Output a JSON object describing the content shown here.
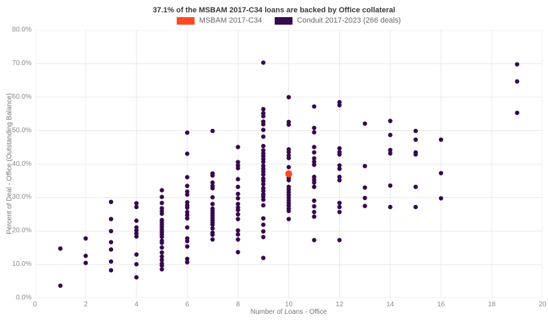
{
  "title": "37.1% of the MSBAM 2017-C34 loans are backed by Office collateral",
  "legend": [
    {
      "label": "MSBAM 2017-C34",
      "color": "#ff4a21"
    },
    {
      "label": "Conduit 2017-2023 (266 deals)",
      "color": "#36094f"
    }
  ],
  "chart_data": {
    "type": "scatter",
    "title": "37.1% of the MSBAM 2017-C34 loans are backed by Office collateral",
    "xlabel": "Number of Loans - Office",
    "ylabel": "Percent of Deal - Office (Outstanding Balance)",
    "xlim": [
      0,
      20
    ],
    "ylim": [
      0,
      80
    ],
    "grid": true,
    "legend_position": "top-center",
    "gridline_color": "#e8e8e8",
    "x_ticks": [
      {
        "value": 0,
        "label": "0"
      },
      {
        "value": 2,
        "label": "2"
      },
      {
        "value": 4,
        "label": "4"
      },
      {
        "value": 6,
        "label": "6"
      },
      {
        "value": 8,
        "label": "8"
      },
      {
        "value": 10,
        "label": "10"
      },
      {
        "value": 12,
        "label": "12"
      },
      {
        "value": 14,
        "label": "14"
      },
      {
        "value": 16,
        "label": "16"
      },
      {
        "value": 18,
        "label": "18"
      },
      {
        "value": 20,
        "label": "20"
      }
    ],
    "y_ticks": [
      {
        "value": 0,
        "label": "0.0%"
      },
      {
        "value": 10,
        "label": "10.0%"
      },
      {
        "value": 20,
        "label": "20.0%"
      },
      {
        "value": 30,
        "label": "30.0%"
      },
      {
        "value": 40,
        "label": "40.0%"
      },
      {
        "value": 50,
        "label": "50.0%"
      },
      {
        "value": 60,
        "label": "60.0%"
      },
      {
        "value": 70,
        "label": "70.0%"
      },
      {
        "value": 80,
        "label": "80.0%"
      }
    ],
    "series": [
      {
        "name": "MSBAM 2017-C34",
        "color": "#ff4a21",
        "marker_radius": 5.2,
        "points": [
          [
            10,
            37.1
          ]
        ]
      },
      {
        "name": "Conduit 2017-2023 (266 deals)",
        "color": "#36094f",
        "marker_radius": 3.2,
        "points": [
          [
            1,
            14.8
          ],
          [
            1,
            3.7
          ],
          [
            2,
            17.8
          ],
          [
            2,
            12.6
          ],
          [
            2,
            10.5
          ],
          [
            3,
            28.7
          ],
          [
            3,
            23.6
          ],
          [
            3,
            20.0
          ],
          [
            3,
            16.7
          ],
          [
            3,
            14.5
          ],
          [
            3,
            10.9
          ],
          [
            3,
            8.3
          ],
          [
            4,
            28.3
          ],
          [
            4,
            27.2
          ],
          [
            4,
            23.1
          ],
          [
            4,
            21.1
          ],
          [
            4,
            20.2
          ],
          [
            4,
            19.3
          ],
          [
            4,
            18.4
          ],
          [
            4,
            13.0
          ],
          [
            4,
            10.1
          ],
          [
            4,
            6.2
          ],
          [
            5,
            32.2
          ],
          [
            5,
            30.2
          ],
          [
            5,
            28.4
          ],
          [
            5,
            26.8
          ],
          [
            5,
            26.0
          ],
          [
            5,
            25.2
          ],
          [
            5,
            23.3
          ],
          [
            5,
            22.6
          ],
          [
            5,
            21.9
          ],
          [
            5,
            21.2
          ],
          [
            5,
            20.4
          ],
          [
            5,
            19.7
          ],
          [
            5,
            19.0
          ],
          [
            5,
            18.3
          ],
          [
            5,
            17.1
          ],
          [
            5,
            16.5
          ],
          [
            5,
            15.1
          ],
          [
            5,
            13.6
          ],
          [
            5,
            12.4
          ],
          [
            5,
            11.4
          ],
          [
            5,
            10.3
          ],
          [
            5,
            9.7
          ],
          [
            5,
            8.6
          ],
          [
            6,
            49.4
          ],
          [
            6,
            43.1
          ],
          [
            6,
            36.1
          ],
          [
            6,
            33.5
          ],
          [
            6,
            31.8
          ],
          [
            6,
            30.9
          ],
          [
            6,
            28.6
          ],
          [
            6,
            27.7
          ],
          [
            6,
            27.0
          ],
          [
            6,
            25.7
          ],
          [
            6,
            24.8
          ],
          [
            6,
            23.8
          ],
          [
            6,
            21.1
          ],
          [
            6,
            17.8
          ],
          [
            6,
            17.0
          ],
          [
            6,
            15.4
          ],
          [
            6,
            11.7
          ],
          [
            6,
            10.7
          ],
          [
            7,
            49.9
          ],
          [
            7,
            37.2
          ],
          [
            7,
            36.6
          ],
          [
            7,
            34.5
          ],
          [
            7,
            33.5
          ],
          [
            7,
            32.8
          ],
          [
            7,
            30.1
          ],
          [
            7,
            28.1
          ],
          [
            7,
            26.7
          ],
          [
            7,
            26.0
          ],
          [
            7,
            25.3
          ],
          [
            7,
            24.6
          ],
          [
            7,
            23.9
          ],
          [
            7,
            23.2
          ],
          [
            7,
            22.5
          ],
          [
            7,
            21.9
          ],
          [
            7,
            20.8
          ],
          [
            7,
            19.5
          ],
          [
            7,
            18.9
          ],
          [
            7,
            17.5
          ],
          [
            8,
            45.1
          ],
          [
            8,
            40.6
          ],
          [
            8,
            39.6
          ],
          [
            8,
            38.8
          ],
          [
            8,
            35.5
          ],
          [
            8,
            33.2
          ],
          [
            8,
            31.1
          ],
          [
            8,
            29.8
          ],
          [
            8,
            28.1
          ],
          [
            8,
            27.0
          ],
          [
            8,
            26.3
          ],
          [
            8,
            25.0
          ],
          [
            8,
            23.6
          ],
          [
            8,
            20.2
          ],
          [
            8,
            19.0
          ],
          [
            8,
            17.5
          ],
          [
            8,
            13.7
          ],
          [
            9,
            70.3
          ],
          [
            9,
            56.4
          ],
          [
            9,
            55.2
          ],
          [
            9,
            54.3
          ],
          [
            9,
            52.7
          ],
          [
            9,
            51.9
          ],
          [
            9,
            50.2
          ],
          [
            9,
            48.2
          ],
          [
            9,
            45.4
          ],
          [
            9,
            44.1
          ],
          [
            9,
            43.2
          ],
          [
            9,
            42.4
          ],
          [
            9,
            41.5
          ],
          [
            9,
            40.7
          ],
          [
            9,
            39.5
          ],
          [
            9,
            38.6
          ],
          [
            9,
            37.8
          ],
          [
            9,
            36.9
          ],
          [
            9,
            35.7
          ],
          [
            9,
            35.0
          ],
          [
            9,
            34.0
          ],
          [
            9,
            32.8
          ],
          [
            9,
            32.0
          ],
          [
            9,
            31.0
          ],
          [
            9,
            30.3
          ],
          [
            9,
            29.4
          ],
          [
            9,
            27.7
          ],
          [
            9,
            23.8
          ],
          [
            9,
            21.9
          ],
          [
            9,
            19.9
          ],
          [
            9,
            18.2
          ],
          [
            9,
            12.0
          ],
          [
            10,
            60.0
          ],
          [
            10,
            52.6
          ],
          [
            10,
            51.8
          ],
          [
            10,
            44.4
          ],
          [
            10,
            43.6
          ],
          [
            10,
            42.6
          ],
          [
            10,
            41.8
          ],
          [
            10,
            39.1
          ],
          [
            10,
            35.9
          ],
          [
            10,
            35.2
          ],
          [
            10,
            33.2
          ],
          [
            10,
            32.4
          ],
          [
            10,
            31.6
          ],
          [
            10,
            30.8
          ],
          [
            10,
            30.0
          ],
          [
            10,
            29.2
          ],
          [
            10,
            28.4
          ],
          [
            10,
            27.6
          ],
          [
            10,
            26.7
          ],
          [
            10,
            26.0
          ],
          [
            10,
            23.6
          ],
          [
            11,
            57.2
          ],
          [
            11,
            50.8
          ],
          [
            11,
            49.5
          ],
          [
            11,
            45.1
          ],
          [
            11,
            43.5
          ],
          [
            11,
            41.7
          ],
          [
            11,
            40.7
          ],
          [
            11,
            39.8
          ],
          [
            11,
            36.2
          ],
          [
            11,
            35.3
          ],
          [
            11,
            34.5
          ],
          [
            11,
            33.2
          ],
          [
            11,
            29.1
          ],
          [
            11,
            27.4
          ],
          [
            11,
            25.7
          ],
          [
            11,
            24.3
          ],
          [
            11,
            17.3
          ],
          [
            12,
            58.5
          ],
          [
            12,
            57.6
          ],
          [
            12,
            44.7
          ],
          [
            12,
            43.6
          ],
          [
            12,
            42.9
          ],
          [
            12,
            39.6
          ],
          [
            12,
            38.6
          ],
          [
            12,
            36.2
          ],
          [
            12,
            35.2
          ],
          [
            12,
            28.4
          ],
          [
            12,
            27.2
          ],
          [
            12,
            25.7
          ],
          [
            12,
            17.3
          ],
          [
            13,
            52.1
          ],
          [
            13,
            39.4
          ],
          [
            13,
            33.0
          ],
          [
            13,
            29.9
          ],
          [
            13,
            27.5
          ],
          [
            14,
            52.9
          ],
          [
            14,
            48.7
          ],
          [
            14,
            44.2
          ],
          [
            14,
            43.2
          ],
          [
            14,
            33.6
          ],
          [
            14,
            27.2
          ],
          [
            15,
            49.9
          ],
          [
            15,
            47.3
          ],
          [
            15,
            43.5
          ],
          [
            15,
            42.9
          ],
          [
            15,
            33.2
          ],
          [
            15,
            27.2
          ],
          [
            16,
            47.3
          ],
          [
            16,
            37.3
          ],
          [
            16,
            29.8
          ],
          [
            19,
            69.8
          ],
          [
            19,
            64.7
          ],
          [
            19,
            55.3
          ]
        ]
      }
    ]
  }
}
